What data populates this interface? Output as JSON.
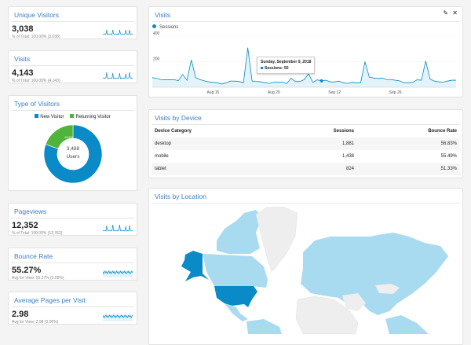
{
  "metrics": [
    {
      "title": "Unique Visitors",
      "value": "3,038",
      "sub": "% of Total: 100.00% (3,038)"
    },
    {
      "title": "Visits",
      "value": "4,143",
      "sub": "% of Total: 100.00% (4,143)"
    },
    {
      "title": "Pageviews",
      "value": "12,352",
      "sub": "% of Total: 100.00% (12,352)"
    },
    {
      "title": "Bounce Rate",
      "value": "55.27%",
      "sub": "Avg for View: 55.27% (0.00%)"
    },
    {
      "title": "Average Pages per Visit",
      "value": "2.98",
      "sub": "Avg for View: 2.98 (0.00%)"
    }
  ],
  "visitor_types": {
    "title": "Type of Visitors",
    "center_value": "3,488",
    "center_label": "Users",
    "chart_data": {
      "type": "pie",
      "categories": [
        "New Visitor",
        "Returning Visitor"
      ],
      "values": [
        80.4,
        19.6
      ],
      "labels": [
        "80.4%",
        "19.6%"
      ],
      "colors": [
        "#0a8ac6",
        "#51b43a"
      ],
      "legend": "top"
    }
  },
  "visits_chart": {
    "title": "Visits",
    "legend": "Sessions",
    "edit_icon": "pencil-icon",
    "close_icon": "close-icon",
    "tooltip": {
      "title": "Sunday, September 9, 2018",
      "text": "Sessions: 50"
    },
    "chart_data": {
      "type": "area",
      "series": [
        {
          "name": "Sessions",
          "values": [
            75,
            70,
            60,
            58,
            58,
            60,
            52,
            100,
            55,
            215,
            75,
            60,
            50,
            42,
            38,
            35,
            25,
            35,
            48,
            48,
            45,
            35,
            310,
            48,
            47,
            42,
            35,
            30,
            40,
            38,
            40,
            30,
            70,
            45,
            45,
            60,
            105,
            38,
            58,
            50,
            55,
            42,
            42,
            48,
            35,
            30,
            38,
            35,
            35,
            200,
            80,
            72,
            68,
            72,
            60,
            60,
            55,
            50,
            35,
            35,
            38,
            58,
            55,
            205,
            65,
            48,
            42,
            40,
            48,
            55,
            55
          ]
        }
      ],
      "x_ticks": [
        "Aug 15",
        "Aug 29",
        "Sep 12",
        "Sep 26"
      ],
      "y_ticks": [
        "200",
        "400"
      ],
      "ylim": [
        0,
        400
      ],
      "color": "#0a8ac6"
    }
  },
  "device": {
    "title": "Visits by Device",
    "headers": [
      "Device Category",
      "Sessions",
      "Bounce Rate"
    ],
    "rows": [
      [
        "desktop",
        "1,881",
        "56.83%"
      ],
      [
        "mobile",
        "1,438",
        "55.49%"
      ],
      [
        "tablet",
        "824",
        "51.33%"
      ]
    ]
  },
  "location": {
    "title": "Visits by Location",
    "colors": {
      "high": "#0a8ac6",
      "low": "#a8dbf0",
      "none": "#eeeeee"
    }
  }
}
